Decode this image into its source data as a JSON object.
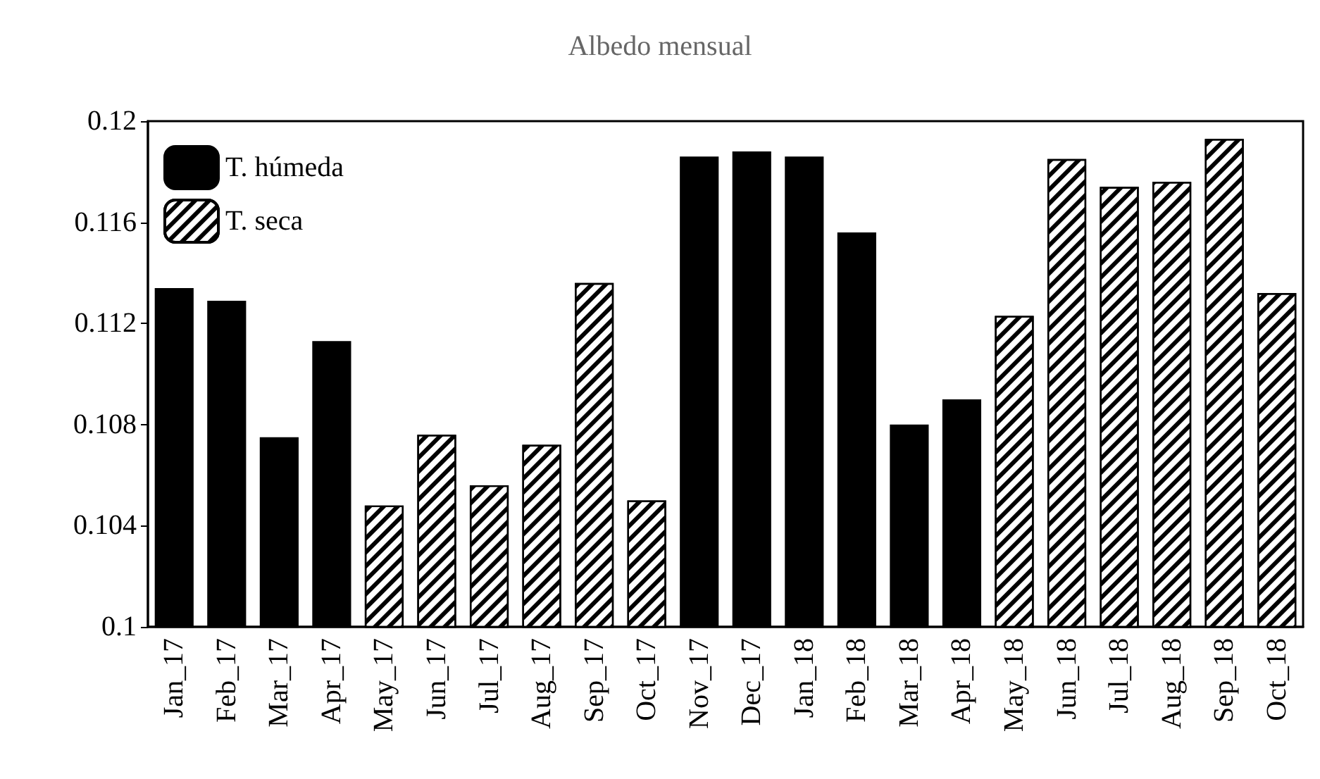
{
  "chart_data": {
    "type": "bar",
    "title": "Albedo mensual",
    "categories": [
      "Jan_17",
      "Feb_17",
      "Mar_17",
      "Apr_17",
      "May_17",
      "Jun_17",
      "Jul_17",
      "Aug_17",
      "Sep_17",
      "Oct_17",
      "Nov_17",
      "Dec_17",
      "Jan_18",
      "Feb_18",
      "Mar_18",
      "Apr_18",
      "May_18",
      "Jun_18",
      "Jul_18",
      "Aug_18",
      "Sep_18",
      "Oct_18"
    ],
    "series": [
      {
        "name": "T. húmeda",
        "color": "#000000",
        "values": [
          0.1134,
          0.1129,
          0.1075,
          0.1113,
          null,
          null,
          null,
          null,
          null,
          null,
          0.1186,
          0.1188,
          0.1186,
          0.1156,
          0.108,
          0.109,
          null,
          null,
          null,
          null,
          null,
          null
        ]
      },
      {
        "name": "T. seca",
        "color": "#ffffff",
        "values": [
          null,
          null,
          null,
          null,
          0.1048,
          0.1076,
          0.1056,
          0.1072,
          0.1136,
          0.105,
          null,
          null,
          null,
          null,
          null,
          null,
          0.1123,
          0.1185,
          0.1174,
          0.1176,
          0.1193,
          0.1132
        ]
      }
    ],
    "ylim": [
      0.1,
      0.12
    ],
    "yticks": [
      0.1,
      0.104,
      0.108,
      0.112,
      0.116,
      0.12
    ],
    "grid": false,
    "legend": "top left"
  }
}
